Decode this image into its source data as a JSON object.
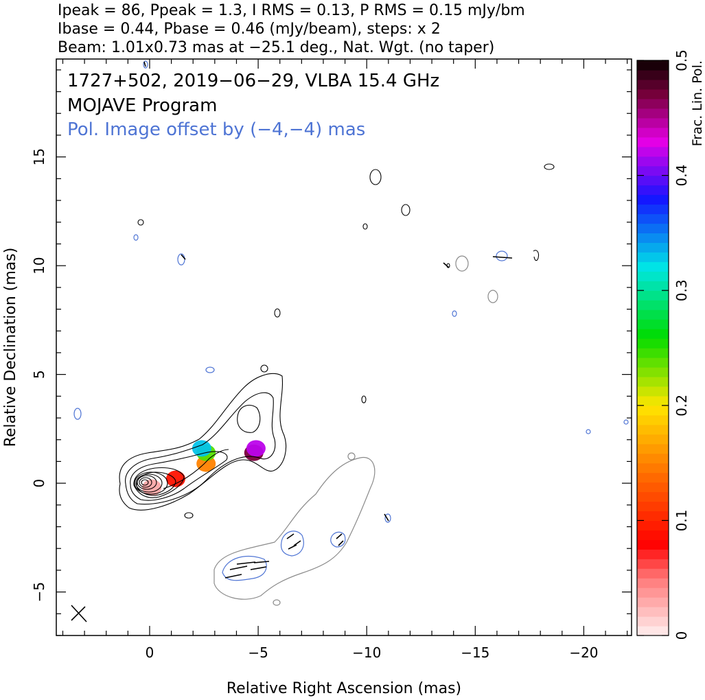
{
  "header": {
    "line1": "Ipeak = 86, Ppeak = 1.3, I RMS = 0.13, P RMS = 0.15 mJy/bm",
    "line2": "Ibase = 0.44, Pbase = 0.46 (mJy/beam), steps: x 2",
    "line3": "Beam: 1.01x0.73 mas at −25.1 deg., Nat. Wgt. (no taper)"
  },
  "annotations": {
    "source": "1727+502, 2019−06−29, VLBA 15.4 GHz",
    "program": "MOJAVE Program",
    "pol_offset": "Pol. Image offset by (−4,−4) mas"
  },
  "colors": {
    "total_intensity_contour": "#000000",
    "pol_intensity_contour": "#4e74d4",
    "offset_contour": "#8a8a8a"
  },
  "chart_data": {
    "type": "contour",
    "xlabel": "Relative Right Ascension (mas)",
    "ylabel": "Relative Declination (mas)",
    "xlim": [
      4.3,
      -22.2
    ],
    "ylim": [
      -7.0,
      19.5
    ],
    "xticks": [
      0,
      -5,
      -10,
      -15,
      -20
    ],
    "xtick_labels": [
      "0",
      "−5",
      "−10",
      "−15",
      "−20"
    ],
    "yticks": [
      -5,
      0,
      5,
      10,
      15
    ],
    "ytick_labels": [
      "−5",
      "0",
      "5",
      "10",
      "15"
    ],
    "colorbar": {
      "label": "Frac. Lin. Pol.",
      "min": 0,
      "max": 0.5,
      "ticks": [
        0,
        0.1,
        0.2,
        0.3,
        0.4,
        0.5
      ],
      "tick_labels": [
        "0",
        "0.1",
        "0.2",
        "0.3",
        "0.4",
        "0.5"
      ]
    },
    "core": {
      "x": 0,
      "y": 0
    },
    "beam": {
      "major": 1.01,
      "minor": 0.73,
      "pa": -25.1,
      "x": 3.2,
      "y": -6.0
    },
    "pol_patches": [
      {
        "x": -0.1,
        "y": -0.2,
        "frac": 0.03
      },
      {
        "x": -1.2,
        "y": 0.2,
        "frac": 0.09
      },
      {
        "x": -2.6,
        "y": 0.9,
        "frac": 0.15
      },
      {
        "x": -2.6,
        "y": 1.4,
        "frac": 0.24
      },
      {
        "x": -2.4,
        "y": 1.6,
        "frac": 0.33
      },
      {
        "x": -4.8,
        "y": 1.4,
        "frac": 0.47
      },
      {
        "x": -4.9,
        "y": 1.6,
        "frac": 0.42
      }
    ]
  }
}
